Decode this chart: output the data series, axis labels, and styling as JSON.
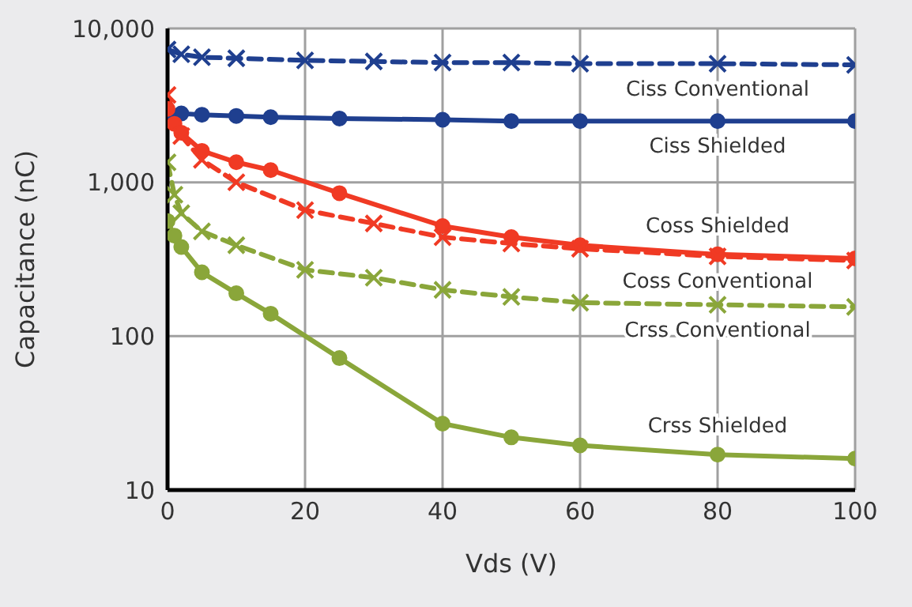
{
  "chart_data": {
    "type": "line",
    "xlabel": "Vds (V)",
    "ylabel": "Capacitance (nC)",
    "log": "y",
    "grid": true,
    "xlim": [
      0,
      100
    ],
    "xticks": [
      0,
      20,
      40,
      60,
      80,
      100
    ],
    "ylim": [
      10,
      10000
    ],
    "yticks": [
      10,
      100,
      {
        "value": 1000,
        "label": "1,000"
      },
      {
        "value": 10000,
        "label": "10,000"
      }
    ],
    "series": [
      {
        "name": "Ciss Conventional",
        "color": "#1f3f8f",
        "marker": "cross",
        "line_style": "dashed",
        "x": [
          0,
          2,
          5,
          10,
          20,
          30,
          40,
          50,
          60,
          80,
          100
        ],
        "values": [
          7300,
          6800,
          6500,
          6400,
          6200,
          6100,
          6000,
          6000,
          5900,
          5900,
          5800
        ]
      },
      {
        "name": "Ciss Shielded",
        "color": "#1f3f8f",
        "marker": "circle",
        "line_style": "solid",
        "x": [
          0,
          2,
          5,
          10,
          15,
          25,
          40,
          50,
          60,
          80,
          100
        ],
        "values": [
          2900,
          2800,
          2750,
          2700,
          2650,
          2600,
          2550,
          2500,
          2500,
          2500,
          2500
        ]
      },
      {
        "name": "Coss Shielded",
        "color": "#f03a24",
        "marker": "circle",
        "line_style": "solid",
        "x": [
          0,
          1,
          2,
          5,
          10,
          15,
          25,
          40,
          50,
          60,
          80,
          100
        ],
        "values": [
          3000,
          2400,
          2100,
          1600,
          1350,
          1200,
          850,
          520,
          440,
          390,
          340,
          320
        ]
      },
      {
        "name": "Coss Conventional",
        "color": "#f03a24",
        "marker": "cross",
        "line_style": "dashed",
        "x": [
          0,
          2,
          5,
          10,
          20,
          30,
          40,
          50,
          60,
          80,
          100
        ],
        "values": [
          3700,
          2000,
          1400,
          1000,
          660,
          540,
          440,
          400,
          370,
          330,
          310
        ]
      },
      {
        "name": "Crss Conventional",
        "color": "#8aa63a",
        "marker": "cross",
        "line_style": "dashed",
        "x": [
          0,
          1,
          2,
          5,
          10,
          20,
          30,
          40,
          50,
          60,
          80,
          100
        ],
        "values": [
          1350,
          830,
          630,
          480,
          390,
          270,
          240,
          200,
          180,
          165,
          160,
          155
        ]
      },
      {
        "name": "Crss Shielded",
        "color": "#8aa63a",
        "marker": "circle",
        "line_style": "solid",
        "x": [
          0,
          1,
          2,
          5,
          10,
          15,
          25,
          40,
          50,
          60,
          80,
          100
        ],
        "values": [
          560,
          450,
          380,
          260,
          190,
          140,
          72,
          27,
          22,
          19.5,
          17,
          16
        ]
      }
    ]
  }
}
